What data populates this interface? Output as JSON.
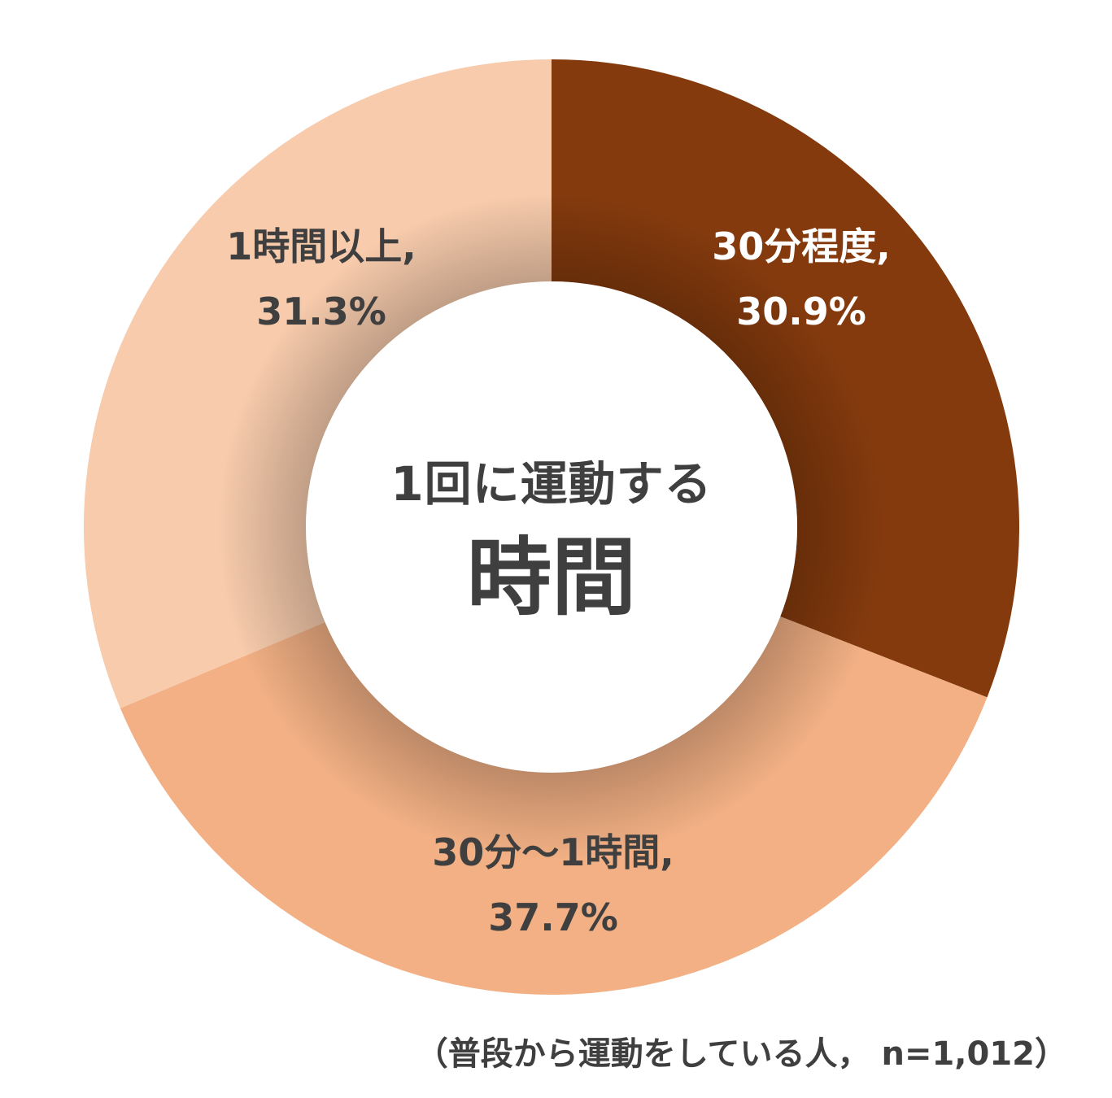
{
  "chart_data": {
    "type": "pie",
    "title": "1回に運動する",
    "title_emphasis": "時間",
    "slices": [
      {
        "label": "30分程度,",
        "value_label": "30.9%",
        "value": 30.9,
        "color": "#843a0d",
        "text_color": "#ffffff"
      },
      {
        "label": "30分～1時間,",
        "value_label": "37.7%",
        "value": 37.7,
        "color": "#f2b084",
        "text_color": "#3f3f3f"
      },
      {
        "label": "1時間以上,",
        "value_label": "31.3%",
        "value": 31.3,
        "color": "#f7cbac",
        "text_color": "#3f3f3f"
      }
    ],
    "start_angle": "12 o'clock",
    "direction": "clockwise",
    "style": "donut",
    "footnote": "（普段から運動をしている人， n=1,012）"
  }
}
